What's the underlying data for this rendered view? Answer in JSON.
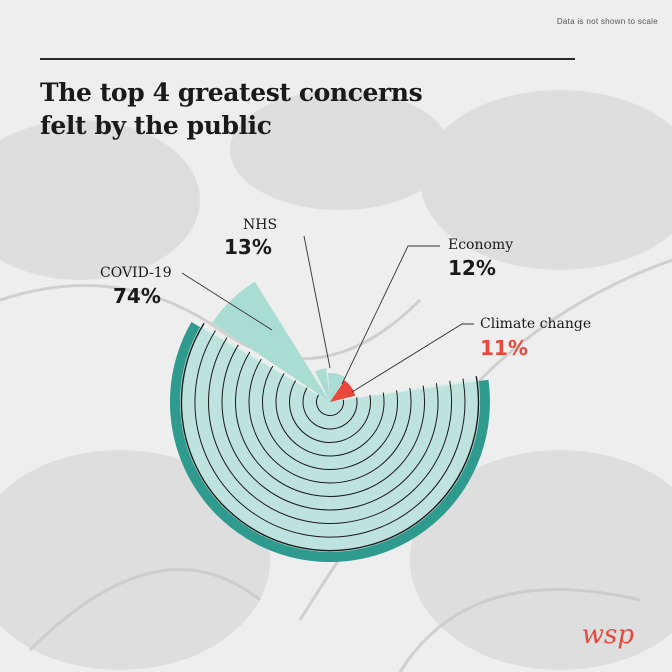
{
  "note": "Data is not shown to scale",
  "title_line1": "The top 4 greatest concerns",
  "title_line2": "felt by the public",
  "brand": "wsp",
  "colors": {
    "teal_dark": "#2f9b8f",
    "teal_light": "#a9dcd3",
    "accent": "#e8473b",
    "ring": "#1a1a1a"
  },
  "chart_data": {
    "type": "pie",
    "subtype": "polar-area (tree-ring style, not to scale)",
    "note": "Data is not shown to scale",
    "series": [
      {
        "name": "COVID-19",
        "value": 74,
        "label": "74%"
      },
      {
        "name": "NHS",
        "value": 13,
        "label": "13%"
      },
      {
        "name": "Economy",
        "value": 12,
        "label": "12%"
      },
      {
        "name": "Climate change",
        "value": 11,
        "label": "11%",
        "highlight": true
      }
    ]
  }
}
